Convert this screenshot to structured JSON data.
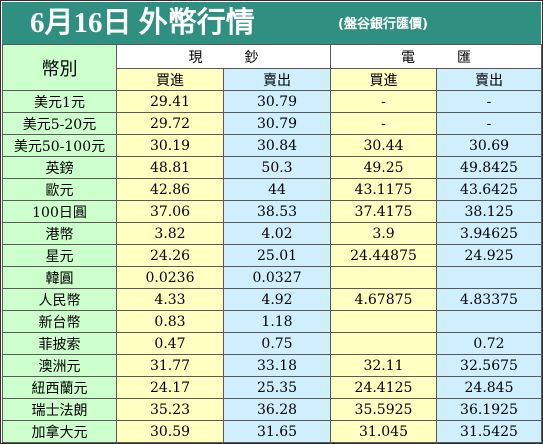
{
  "header": {
    "title": "6月16日 外幣行情",
    "source": "(盤谷銀行匯價)"
  },
  "table": {
    "currency_header": "幣別",
    "group_cash": "現　　　鈔",
    "group_transfer": "電　　　匯",
    "buy_label": "買進",
    "sell_label": "賣出",
    "rows": [
      {
        "name": "美元1元",
        "cash_buy": "29.41",
        "cash_sell": "30.79",
        "tt_buy": "-",
        "tt_sell": "-"
      },
      {
        "name": "美元5-20元",
        "cash_buy": "29.72",
        "cash_sell": "30.79",
        "tt_buy": "-",
        "tt_sell": "-"
      },
      {
        "name": "美元50-100元",
        "cash_buy": "30.19",
        "cash_sell": "30.84",
        "tt_buy": "30.44",
        "tt_sell": "30.69"
      },
      {
        "name": "英鎊",
        "cash_buy": "48.81",
        "cash_sell": "50.3",
        "tt_buy": "49.25",
        "tt_sell": "49.8425"
      },
      {
        "name": "歐元",
        "cash_buy": "42.86",
        "cash_sell": "44",
        "tt_buy": "43.1175",
        "tt_sell": "43.6425"
      },
      {
        "name": "100日圓",
        "cash_buy": "37.06",
        "cash_sell": "38.53",
        "tt_buy": "37.4175",
        "tt_sell": "38.125"
      },
      {
        "name": "港幣",
        "cash_buy": "3.82",
        "cash_sell": "4.02",
        "tt_buy": "3.9",
        "tt_sell": "3.94625"
      },
      {
        "name": "星元",
        "cash_buy": "24.26",
        "cash_sell": "25.01",
        "tt_buy": "24.44875",
        "tt_sell": "24.925"
      },
      {
        "name": "韓圓",
        "cash_buy": "0.0236",
        "cash_sell": "0.0327",
        "tt_buy": "",
        "tt_sell": ""
      },
      {
        "name": "人民幣",
        "cash_buy": "4.33",
        "cash_sell": "4.92",
        "tt_buy": "4.67875",
        "tt_sell": "4.83375"
      },
      {
        "name": "新台幣",
        "cash_buy": "0.83",
        "cash_sell": "1.18",
        "tt_buy": "",
        "tt_sell": ""
      },
      {
        "name": "菲披索",
        "cash_buy": "0.47",
        "cash_sell": "0.75",
        "tt_buy": "",
        "tt_sell": "0.72"
      },
      {
        "name": "澳洲元",
        "cash_buy": "31.77",
        "cash_sell": "33.18",
        "tt_buy": "32.11",
        "tt_sell": "32.5675"
      },
      {
        "name": "紐西蘭元",
        "cash_buy": "24.17",
        "cash_sell": "25.35",
        "tt_buy": "24.4125",
        "tt_sell": "24.845"
      },
      {
        "name": "瑞士法朗",
        "cash_buy": "35.23",
        "cash_sell": "36.28",
        "tt_buy": "35.5925",
        "tt_sell": "36.1925"
      },
      {
        "name": "加拿大元",
        "cash_buy": "30.59",
        "cash_sell": "31.65",
        "tt_buy": "31.045",
        "tt_sell": "31.5425"
      }
    ]
  }
}
